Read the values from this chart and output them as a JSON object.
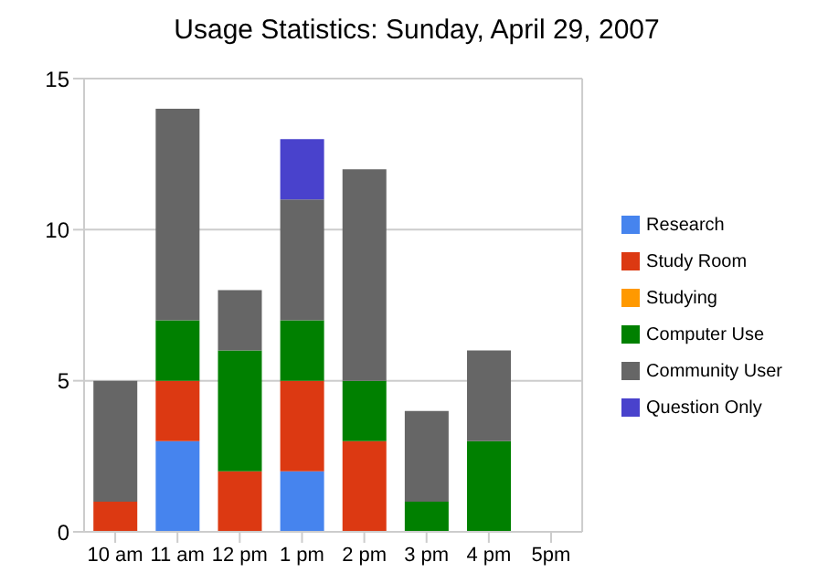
{
  "chart_data": {
    "type": "bar",
    "title": "Usage Statistics: Sunday, April 29, 2007",
    "stacked": true,
    "categories": [
      "10 am",
      "11 am",
      "12 pm",
      "1 pm",
      "2 pm",
      "3 pm",
      "4 pm",
      "5pm"
    ],
    "series": [
      {
        "name": "Research",
        "color": "#4684ee",
        "values": [
          0,
          3,
          0,
          2,
          0,
          0,
          0,
          0
        ]
      },
      {
        "name": "Study Room",
        "color": "#dc3912",
        "values": [
          1,
          2,
          2,
          3,
          3,
          0,
          0,
          0
        ]
      },
      {
        "name": "Studying",
        "color": "#ff9900",
        "values": [
          0,
          0,
          0,
          0,
          0,
          0,
          0,
          0
        ]
      },
      {
        "name": "Computer Use",
        "color": "#008000",
        "values": [
          0,
          2,
          4,
          2,
          2,
          1,
          3,
          0
        ]
      },
      {
        "name": "Community User",
        "color": "#666666",
        "values": [
          4,
          7,
          2,
          4,
          7,
          3,
          3,
          0
        ]
      },
      {
        "name": "Question Only",
        "color": "#4942cc",
        "values": [
          0,
          0,
          0,
          2,
          0,
          0,
          0,
          0
        ]
      }
    ],
    "ylim": [
      0,
      15
    ],
    "yticks": [
      0,
      5,
      10,
      15
    ],
    "grid": "y",
    "legend": "right"
  }
}
